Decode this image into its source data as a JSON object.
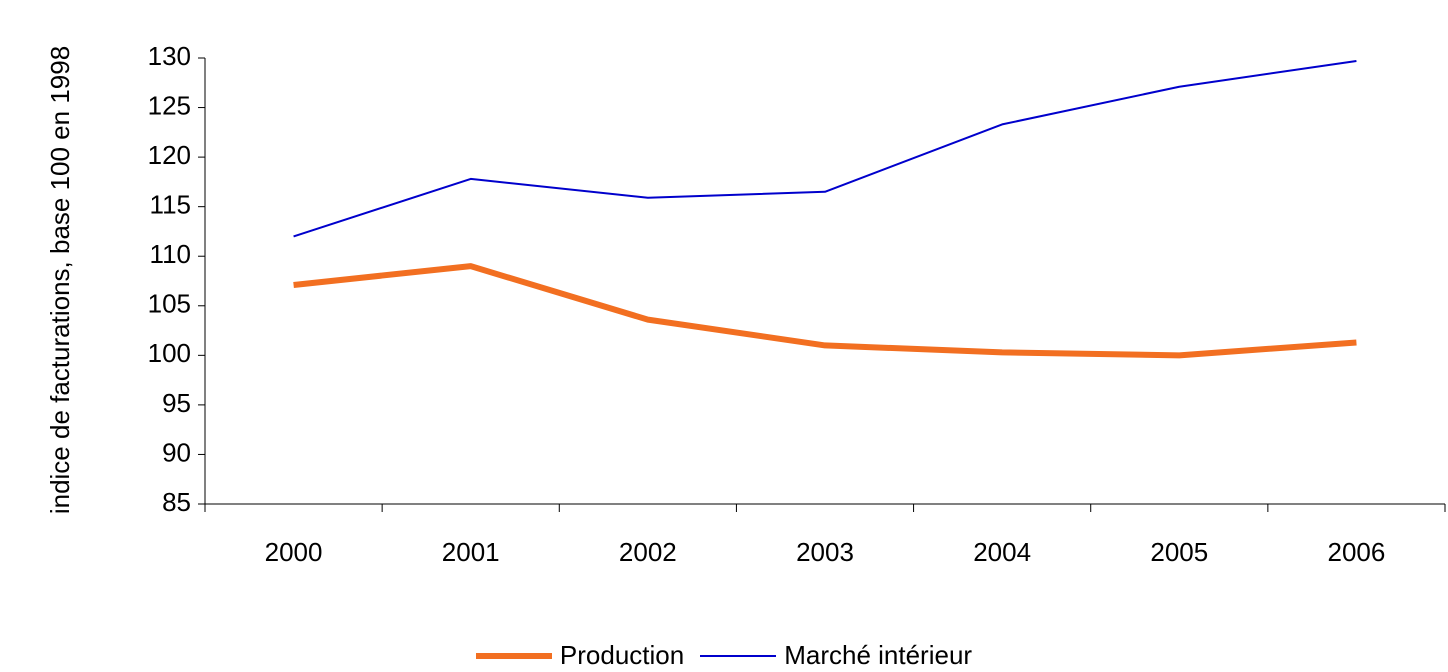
{
  "chart_data": {
    "type": "line",
    "y_label": "indice de facturations, base 100 en 1998",
    "categories": [
      "2000",
      "2001",
      "2002",
      "2003",
      "2004",
      "2005",
      "2006"
    ],
    "series": [
      {
        "name": "Production",
        "color": "#f26f21",
        "values": [
          107.1,
          109.0,
          103.6,
          101.0,
          100.3,
          100.0,
          101.3
        ]
      },
      {
        "name": "Marché intérieur",
        "color": "#0000cc",
        "values": [
          112.0,
          117.8,
          115.9,
          116.5,
          123.3,
          127.1,
          129.7
        ]
      }
    ],
    "ylim": [
      85,
      130
    ],
    "yticks": [
      85,
      90,
      95,
      100,
      105,
      110,
      115,
      120,
      125,
      130
    ],
    "legend": "bottom"
  }
}
